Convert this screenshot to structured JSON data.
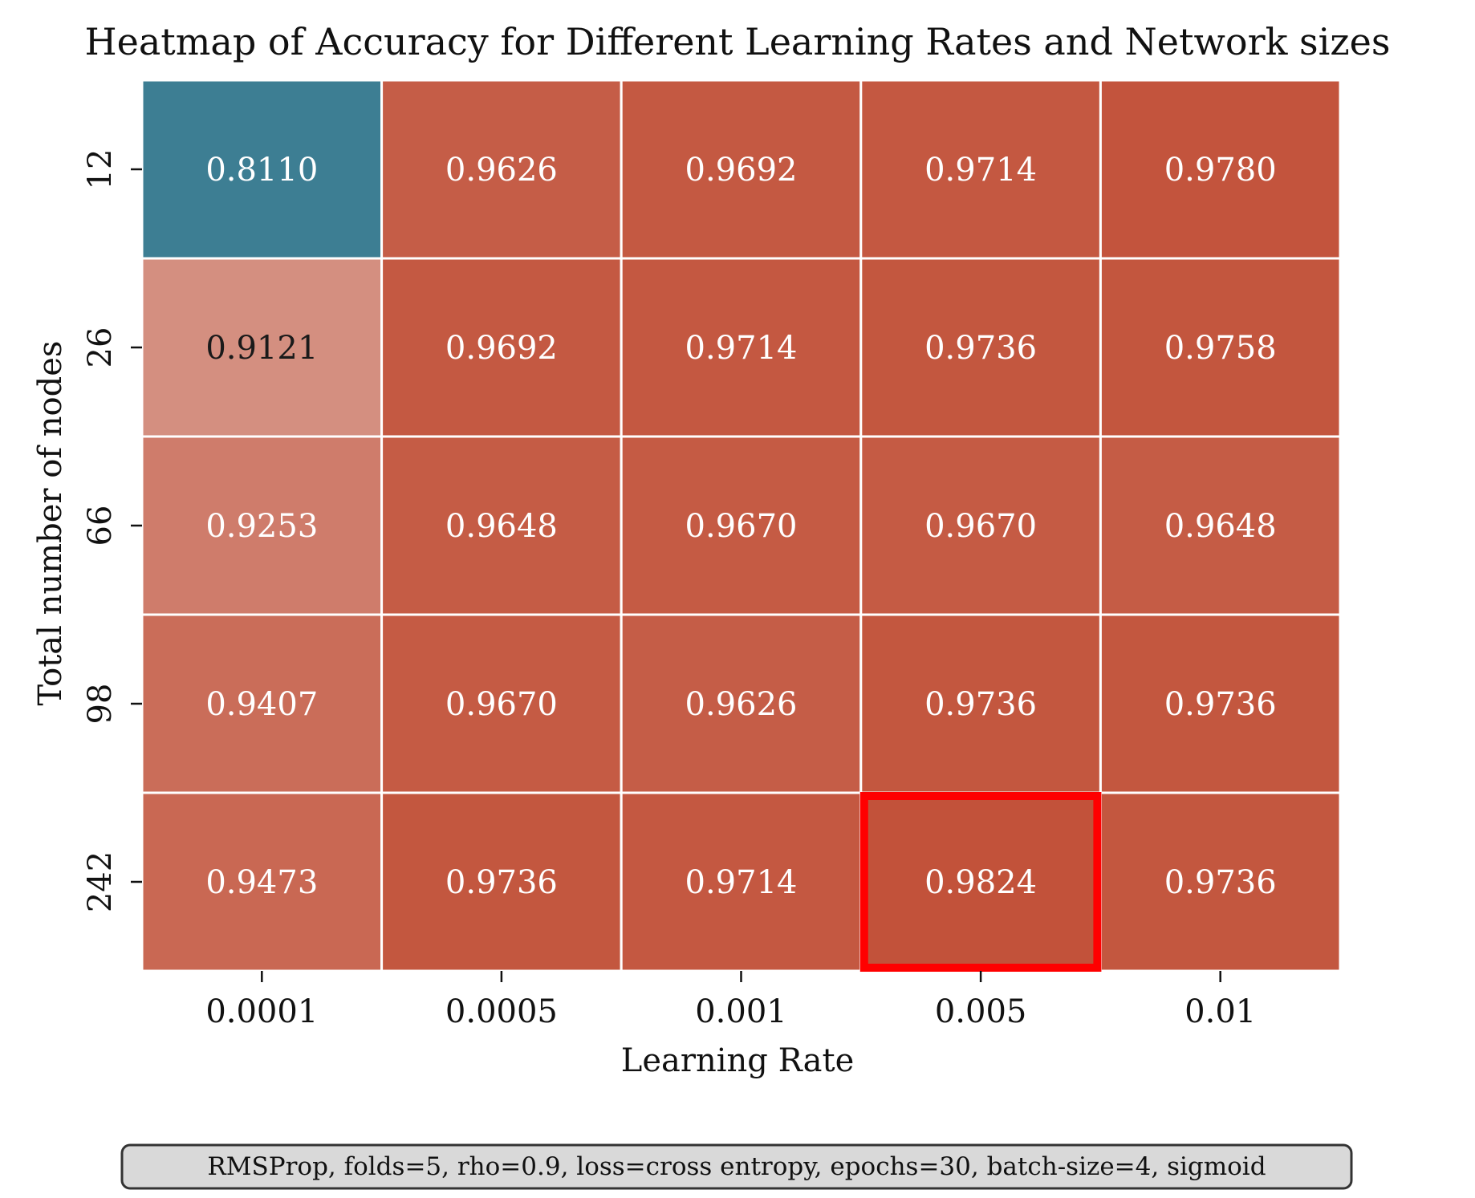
{
  "chart_data": {
    "type": "heatmap",
    "title": "Heatmap of Accuracy for Different Learning Rates and Network sizes",
    "xlabel": "Learning Rate",
    "ylabel": "Total number of nodes",
    "x_categories": [
      "0.0001",
      "0.0005",
      "0.001",
      "0.005",
      "0.01"
    ],
    "y_categories": [
      "12",
      "26",
      "66",
      "98",
      "242"
    ],
    "values": [
      [
        0.811,
        0.9626,
        0.9692,
        0.9714,
        0.978
      ],
      [
        0.9121,
        0.9692,
        0.9714,
        0.9736,
        0.9758
      ],
      [
        0.9253,
        0.9648,
        0.967,
        0.967,
        0.9648
      ],
      [
        0.9407,
        0.967,
        0.9626,
        0.9736,
        0.9736
      ],
      [
        0.9473,
        0.9736,
        0.9714,
        0.9824,
        0.9736
      ]
    ],
    "highlight": {
      "row": 4,
      "col": 3,
      "color": "#ff0000"
    },
    "colormap": {
      "low": "#3d7e93",
      "mid": "#f2f2f2",
      "high": "#c2523a"
    },
    "note": "RMSProp, folds=5, rho=0.9, loss=cross entropy, epochs=30, batch-size=4, sigmoid"
  }
}
